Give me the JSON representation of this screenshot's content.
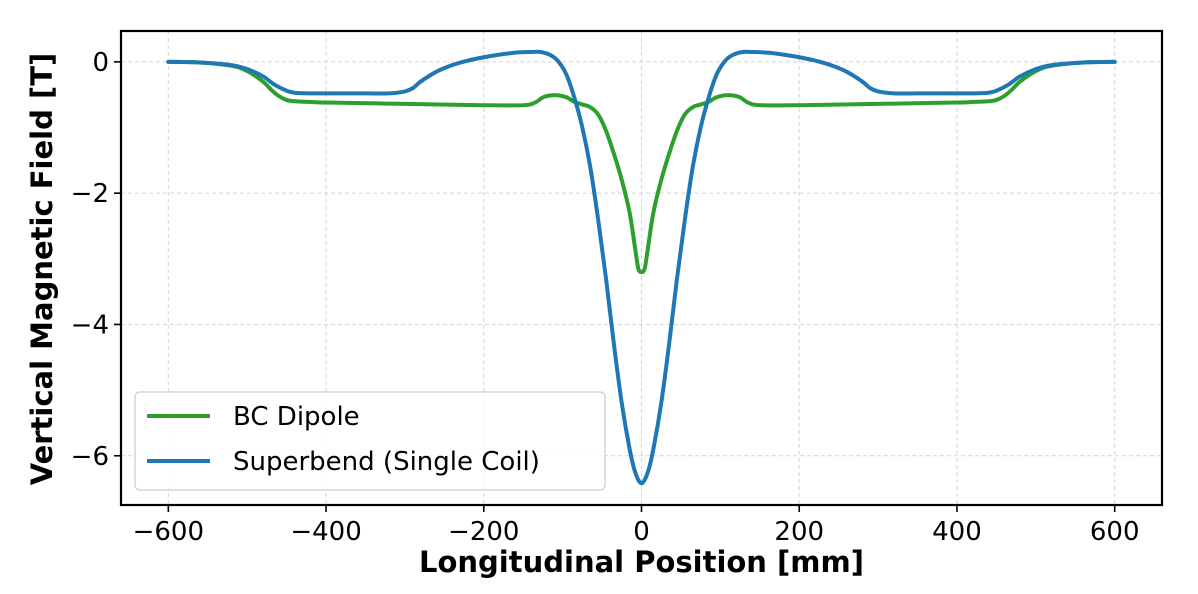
{
  "chart_data": {
    "type": "line",
    "title": "",
    "xlabel": "Longitudinal Position [mm]",
    "ylabel": "Vertical Magnetic Field [T]",
    "xlim": [
      -660,
      660
    ],
    "ylim": [
      -6.75,
      0.47
    ],
    "xticks": [
      -600,
      -400,
      -200,
      0,
      200,
      400,
      600
    ],
    "yticks": [
      0,
      -2,
      -4,
      -6
    ],
    "xtick_labels": [
      "−600",
      "−400",
      "−200",
      "0",
      "200",
      "400",
      "600"
    ],
    "ytick_labels": [
      "0",
      "−2",
      "−4",
      "−6"
    ],
    "grid": true,
    "legend_position": "lower-left",
    "series": [
      {
        "name": "BC Dipole",
        "color": "#2ca02c",
        "x": [
          -600,
          -560,
          -520,
          -500,
          -480,
          -470,
          -460,
          -450,
          -440,
          -420,
          -400,
          -300,
          -200,
          -150,
          -135,
          -125,
          -115,
          -105,
          -95,
          -85,
          -75,
          -65,
          -55,
          -45,
          -35,
          -25,
          -15,
          -8,
          -4,
          0,
          4,
          8,
          15,
          25,
          35,
          45,
          55,
          65,
          75,
          85,
          95,
          105,
          115,
          125,
          135,
          150,
          200,
          300,
          400,
          420,
          440,
          450,
          460,
          470,
          480,
          500,
          520,
          560,
          600
        ],
        "y": [
          0,
          -0.01,
          -0.06,
          -0.14,
          -0.3,
          -0.42,
          -0.52,
          -0.58,
          -0.6,
          -0.61,
          -0.62,
          -0.64,
          -0.66,
          -0.66,
          -0.62,
          -0.54,
          -0.51,
          -0.51,
          -0.54,
          -0.61,
          -0.65,
          -0.69,
          -0.8,
          -1.05,
          -1.4,
          -1.8,
          -2.3,
          -2.85,
          -3.15,
          -3.2,
          -3.15,
          -2.85,
          -2.3,
          -1.8,
          -1.4,
          -1.05,
          -0.8,
          -0.69,
          -0.65,
          -0.61,
          -0.54,
          -0.51,
          -0.51,
          -0.54,
          -0.62,
          -0.66,
          -0.66,
          -0.64,
          -0.62,
          -0.61,
          -0.6,
          -0.58,
          -0.52,
          -0.42,
          -0.3,
          -0.14,
          -0.06,
          -0.01,
          0
        ]
      },
      {
        "name": "Superbend (Single Coil)",
        "color": "#1f77b4",
        "x": [
          -600,
          -560,
          -520,
          -500,
          -480,
          -465,
          -450,
          -440,
          -420,
          -400,
          -350,
          -320,
          -300,
          -290,
          -280,
          -260,
          -240,
          -220,
          -200,
          -180,
          -160,
          -140,
          -128,
          -115,
          -105,
          -95,
          -85,
          -75,
          -65,
          -55,
          -45,
          -35,
          -25,
          -15,
          -8,
          0,
          8,
          15,
          25,
          35,
          45,
          55,
          65,
          75,
          85,
          95,
          105,
          115,
          128,
          140,
          160,
          180,
          200,
          220,
          240,
          260,
          280,
          290,
          300,
          320,
          350,
          400,
          420,
          440,
          450,
          465,
          480,
          500,
          520,
          560,
          600
        ],
        "y": [
          0,
          -0.01,
          -0.05,
          -0.11,
          -0.22,
          -0.35,
          -0.44,
          -0.47,
          -0.48,
          -0.48,
          -0.48,
          -0.48,
          -0.45,
          -0.4,
          -0.3,
          -0.15,
          -0.05,
          0.02,
          0.07,
          0.11,
          0.14,
          0.15,
          0.15,
          0.1,
          0.0,
          -0.2,
          -0.55,
          -1.0,
          -1.6,
          -2.4,
          -3.3,
          -4.3,
          -5.2,
          -5.9,
          -6.25,
          -6.42,
          -6.25,
          -5.9,
          -5.2,
          -4.3,
          -3.3,
          -2.4,
          -1.6,
          -1.0,
          -0.55,
          -0.2,
          0.0,
          0.1,
          0.15,
          0.15,
          0.14,
          0.11,
          0.07,
          0.02,
          -0.05,
          -0.15,
          -0.3,
          -0.4,
          -0.45,
          -0.48,
          -0.48,
          -0.48,
          -0.48,
          -0.47,
          -0.44,
          -0.35,
          -0.22,
          -0.11,
          -0.05,
          -0.01,
          0
        ]
      }
    ]
  }
}
